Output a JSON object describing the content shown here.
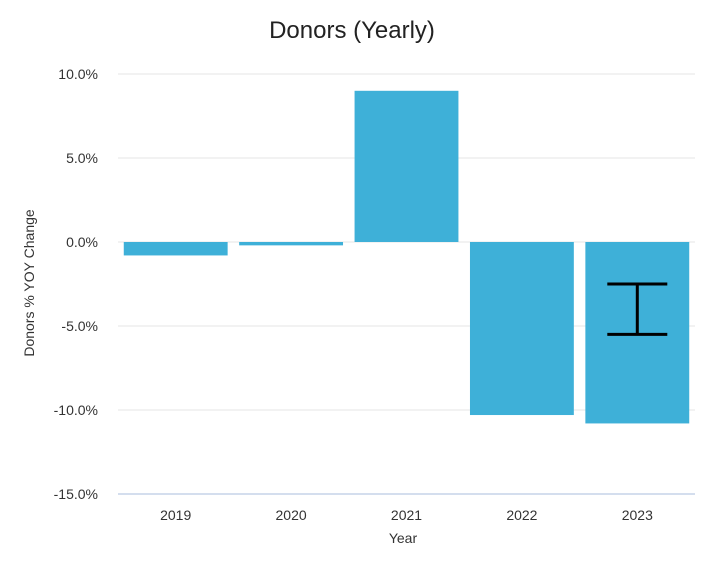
{
  "chart_data": {
    "type": "bar",
    "title": "Donors (Yearly)",
    "xlabel": "Year",
    "ylabel": "Donors % YOY Change",
    "categories": [
      "2019",
      "2020",
      "2021",
      "2022",
      "2023"
    ],
    "values": [
      -0.8,
      -0.2,
      9.0,
      -10.3,
      -10.8
    ],
    "ylim": [
      -15,
      10
    ],
    "yticks": [
      10,
      5,
      0,
      -5,
      -10,
      -15
    ],
    "ytick_labels": [
      "10.0%",
      "5.0%",
      "0.0%",
      "-5.0%",
      "-10.0%",
      "-15.0%"
    ],
    "grid": true,
    "legend": "none",
    "bar_color": "#3eb0d8",
    "error_bar": {
      "category": "2023",
      "low": -5.5,
      "high": -2.5,
      "color": "#000000"
    }
  }
}
